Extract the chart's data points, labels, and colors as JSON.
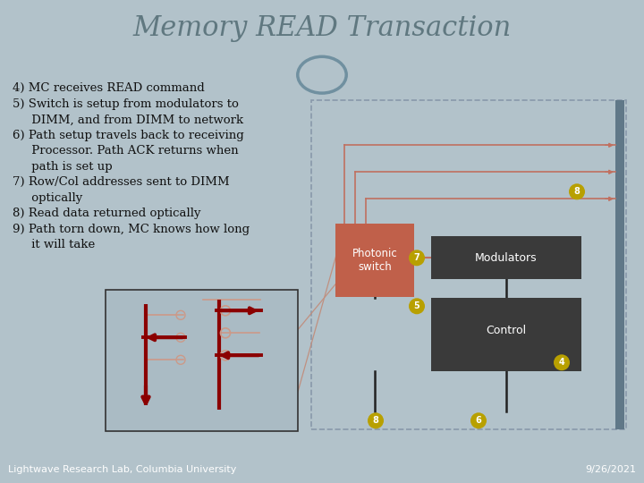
{
  "title": "Memory READ Transaction",
  "bg_color": "#b2c2ca",
  "header_bg": "#f0f0f0",
  "footer_bg": "#8fa4ae",
  "title_color": "#607880",
  "title_fontsize": 22,
  "footer_left": "Lightwave Research Lab, Columbia University",
  "footer_right": "9/26/2021",
  "footer_fontsize": 8,
  "bullet_texts": [
    "4) MC receives READ command",
    "5) Switch is setup from modulators to",
    "     DIMM, and from DIMM to network",
    "6) Path setup travels back to receiving",
    "     Processor. Path ACK returns when",
    "     path is set up",
    "7) Row/Col addresses sent to DIMM",
    "     optically",
    "8) Read data returned optically",
    "9) Path torn down, MC knows how long",
    "     it will take"
  ],
  "bullet_fontsize": 9.5,
  "photonic_switch_color": "#c0604a",
  "modulators_color": "#3a3a3a",
  "control_color": "#3a3a3a",
  "bus_color": "#607888",
  "line_color": "#c07060",
  "arrow_color": "#8b0000",
  "badge_color": "#b8a000",
  "dashed_box_color": "#8899aa"
}
